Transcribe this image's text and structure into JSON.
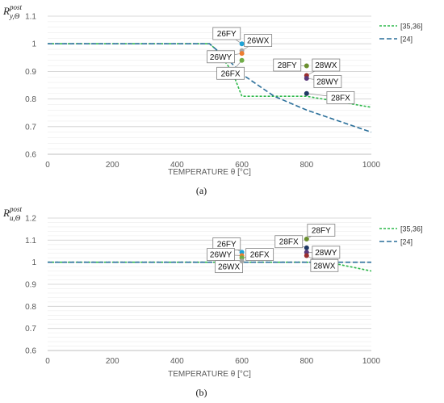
{
  "colors": {
    "series_35_36": "#2db84a",
    "series_24": "#2a6f9a"
  },
  "chart_data": [
    {
      "type": "line",
      "panel": "(a)",
      "ylabel_main": "R",
      "ylabel_sup": "post",
      "ylabel_sub": "y,Θ",
      "xlabel": "TEMPERATURE θ [°C]",
      "xlim": [
        0,
        1000
      ],
      "ylim": [
        0.6,
        1.1
      ],
      "x_ticks": [
        "0",
        "200",
        "400",
        "600",
        "800",
        "1000"
      ],
      "y_ticks": [
        "0.6",
        "0.7",
        "0.8",
        "0.9",
        "1",
        "1.1"
      ],
      "grid": true,
      "legend_position": "right",
      "series": [
        {
          "name": "[35,36]",
          "color": "#2db84a",
          "x": [
            0,
            500,
            520,
            570,
            590,
            600,
            700,
            800,
            1000
          ],
          "y": [
            1,
            1,
            0.98,
            0.9,
            0.84,
            0.81,
            0.81,
            0.81,
            0.77
          ]
        },
        {
          "name": "[24]",
          "color": "#2a6f9a",
          "x": [
            0,
            500,
            560,
            600,
            700,
            800,
            1000
          ],
          "y": [
            1,
            1,
            0.94,
            0.89,
            0.81,
            0.76,
            0.68
          ]
        }
      ],
      "points": [
        {
          "label": "26FY",
          "x": 600,
          "y": 1.0,
          "color": "#1fa3d6",
          "lx": 553,
          "ly": 1.037
        },
        {
          "label": "26WX",
          "x": 600,
          "y": 0.975,
          "color": "#a6a6a6",
          "lx": 650,
          "ly": 1.012
        },
        {
          "label": "26WY",
          "x": 600,
          "y": 0.965,
          "color": "#ed7d31",
          "lx": 535,
          "ly": 0.953
        },
        {
          "label": "26FX",
          "x": 600,
          "y": 0.94,
          "color": "#70ad47",
          "lx": 565,
          "ly": 0.893
        },
        {
          "label": "28FY",
          "x": 800,
          "y": 0.92,
          "color": "#6a8f2e",
          "lx": 740,
          "ly": 0.923
        },
        {
          "label": "28WX",
          "x": 800,
          "y": 0.885,
          "color": "#9b2f2f",
          "lx": 860,
          "ly": 0.923
        },
        {
          "label": "28WY",
          "x": 800,
          "y": 0.875,
          "color": "#5b3a7a",
          "lx": 865,
          "ly": 0.863
        },
        {
          "label": "28FX",
          "x": 800,
          "y": 0.82,
          "color": "#1f3864",
          "lx": 905,
          "ly": 0.805
        }
      ]
    },
    {
      "type": "line",
      "panel": "(b)",
      "ylabel_main": "R",
      "ylabel_sup": "post",
      "ylabel_sub": "u,Θ",
      "xlabel": "TEMPERATURE θ [°C]",
      "xlim": [
        0,
        1000
      ],
      "ylim": [
        0.6,
        1.2
      ],
      "x_ticks": [
        "0",
        "200",
        "400",
        "600",
        "800",
        "1000"
      ],
      "y_ticks": [
        "0.6",
        "0.7",
        "0.8",
        "0.9",
        "1",
        "1.1",
        "1.2"
      ],
      "grid": true,
      "legend_position": "right",
      "series": [
        {
          "name": "[35,36]",
          "color": "#2db84a",
          "x": [
            0,
            800,
            900,
            1000
          ],
          "y": [
            1,
            1,
            0.99,
            0.96
          ]
        },
        {
          "name": "[24]",
          "color": "#2a6f9a",
          "x": [
            0,
            1000
          ],
          "y": [
            1,
            1
          ]
        }
      ],
      "points": [
        {
          "label": "26FY",
          "x": 600,
          "y": 1.045,
          "color": "#1fa3d6",
          "lx": 553,
          "ly": 1.083
        },
        {
          "label": "26WY",
          "x": 600,
          "y": 1.03,
          "color": "#ed7d31",
          "lx": 535,
          "ly": 1.035
        },
        {
          "label": "26FX",
          "x": 600,
          "y": 1.02,
          "color": "#70ad47",
          "lx": 655,
          "ly": 1.035
        },
        {
          "label": "26WX",
          "x": 600,
          "y": 1.005,
          "color": "#a6a6a6",
          "lx": 560,
          "ly": 0.98
        },
        {
          "label": "28FY",
          "x": 800,
          "y": 1.105,
          "color": "#6a8f2e",
          "lx": 845,
          "ly": 1.145
        },
        {
          "label": "28FX",
          "x": 800,
          "y": 1.065,
          "color": "#1f3864",
          "lx": 745,
          "ly": 1.093
        },
        {
          "label": "28WY",
          "x": 800,
          "y": 1.045,
          "color": "#5b3a7a",
          "lx": 860,
          "ly": 1.045
        },
        {
          "label": "28WX",
          "x": 800,
          "y": 1.03,
          "color": "#9b2f2f",
          "lx": 855,
          "ly": 0.985
        }
      ]
    }
  ]
}
